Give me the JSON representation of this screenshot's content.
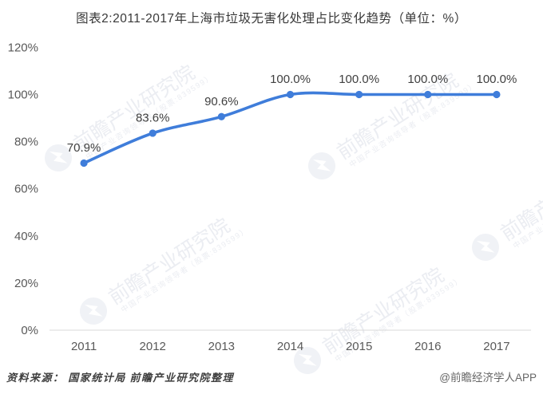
{
  "title": "图表2:2011-2017年上海市垃圾无害化处理占比变化趋势（单位：%）",
  "chart_data": {
    "type": "line",
    "title": "图表2:2011-2017年上海市垃圾无害化处理占比变化趋势（单位：%）",
    "categories": [
      "2011",
      "2012",
      "2013",
      "2014",
      "2015",
      "2016",
      "2017"
    ],
    "values": [
      70.9,
      83.6,
      90.6,
      100.0,
      100.0,
      100.0,
      100.0
    ],
    "data_labels": [
      "70.9%",
      "83.6%",
      "90.6%",
      "100.0%",
      "100.0%",
      "100.0%",
      "100.0%"
    ],
    "xlabel": "",
    "ylabel": "",
    "ylim": [
      0,
      120
    ],
    "yticks": [
      0,
      20,
      40,
      60,
      80,
      100,
      120
    ],
    "ytick_labels": [
      "0%",
      "20%",
      "40%",
      "60%",
      "80%",
      "100%",
      "120%"
    ],
    "grid": false,
    "legend": false,
    "smooth": true,
    "marker": "circle",
    "line_color": "#3f7dda"
  },
  "watermark": {
    "brand": "前瞻产业研究院",
    "tagline": "中国产业咨询领导者（股票:839599）",
    "logo_icon": "qianzhan-bird-icon"
  },
  "footer": {
    "source": "资料来源： 国家统计局 前瞻产业研究院整理",
    "credit": "@前瞻经济学人APP"
  },
  "colors": {
    "line": "#3f7dda",
    "axis_line": "#d8d8d8",
    "tick_label": "#595959",
    "data_label": "#404040",
    "title": "#383838",
    "watermark_text": "#ebedf2",
    "watermark_logo": "#f0f2f6"
  }
}
